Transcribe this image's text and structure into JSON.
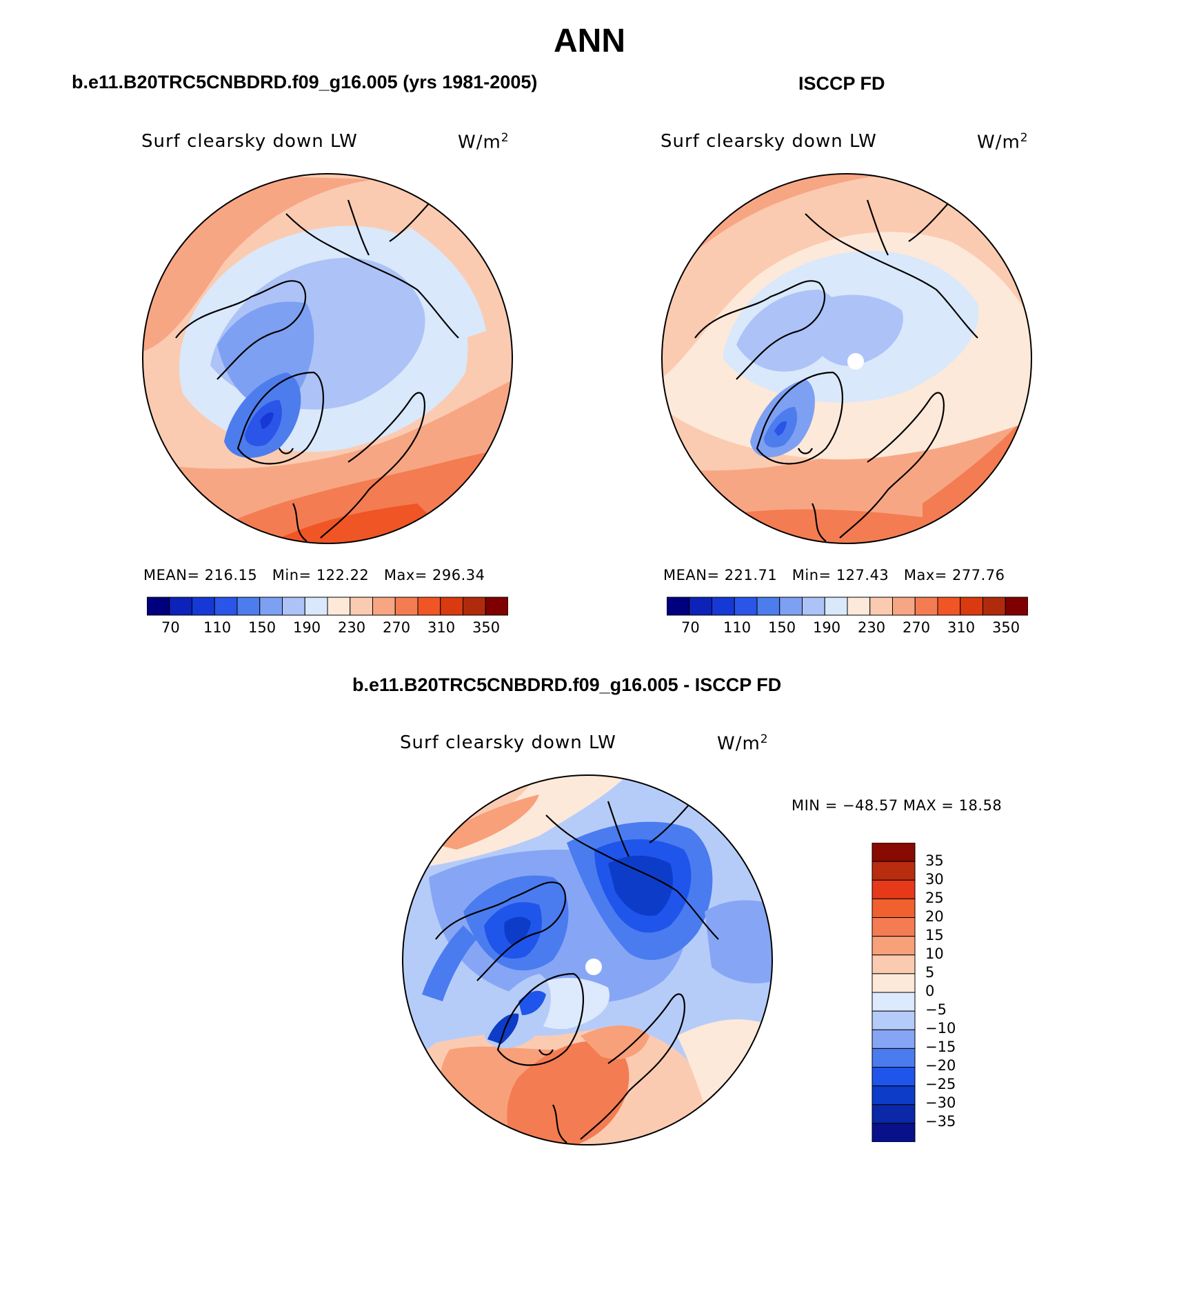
{
  "title": "ANN",
  "colors": {
    "levels14": [
      "#00007f",
      "#0d22b8",
      "#1639d6",
      "#2a55e8",
      "#4d7ded",
      "#7ea0f2",
      "#adc3f7",
      "#d9e8fb",
      "#fde9d9",
      "#fbcbb1",
      "#f7a684",
      "#f47c52",
      "#f05525",
      "#d93a10",
      "#b02a0c",
      "#7f0000"
    ],
    "diff": [
      "#08108a",
      "#0a28a8",
      "#0d3cc8",
      "#1f55ea",
      "#4a7cf0",
      "#86a6f5",
      "#b6ccf8",
      "#dde9fc",
      "#fde9d9",
      "#fbcbb1",
      "#f8a07a",
      "#f47c52",
      "#f0612f",
      "#e5391a",
      "#b82d0f",
      "#880a00"
    ]
  },
  "panels": [
    {
      "header": "b.e11.B20TRC5CNBDRD.f09_g16.005 (yrs 1981-2005)",
      "variable": "Surf clearsky down LW",
      "units": "W/m",
      "units_sup": "2",
      "stats": {
        "mean_label": "MEAN=",
        "mean": "216.15",
        "min_label": "Min=",
        "min": "122.22",
        "max_label": "Max=",
        "max": "296.34"
      },
      "ticks": [
        "70",
        "110",
        "150",
        "190",
        "230",
        "270",
        "310",
        "350"
      ]
    },
    {
      "header": "ISCCP FD",
      "variable": "Surf clearsky down LW",
      "units": "W/m",
      "units_sup": "2",
      "stats": {
        "mean_label": "MEAN=",
        "mean": "221.71",
        "min_label": "Min=",
        "min": "127.43",
        "max_label": "Max=",
        "max": "277.76"
      },
      "ticks": [
        "70",
        "110",
        "150",
        "190",
        "230",
        "270",
        "310",
        "350"
      ]
    }
  ],
  "diff_panel": {
    "header": "b.e11.B20TRC5CNBDRD.f09_g16.005 - ISCCP FD",
    "variable": "Surf clearsky down LW",
    "units": "W/m",
    "units_sup": "2",
    "minmax": "MIN = −48.57 MAX =  18.58",
    "ticks": [
      "35",
      "30",
      "25",
      "20",
      "15",
      "10",
      "5",
      "0",
      "−5",
      "−10",
      "−15",
      "−20",
      "−25",
      "−30",
      "−35"
    ]
  },
  "chart_data": [
    {
      "type": "heatmap",
      "title": "Surf clearsky down LW",
      "units": "W/m2",
      "levels": [
        70,
        90,
        110,
        130,
        150,
        170,
        190,
        210,
        230,
        250,
        270,
        290,
        310,
        330,
        350
      ],
      "mean": 216.15,
      "min": 122.22,
      "max": 296.34
    },
    {
      "type": "heatmap",
      "title": "Surf clearsky down LW",
      "units": "W/m2",
      "levels": [
        70,
        90,
        110,
        130,
        150,
        170,
        190,
        210,
        230,
        250,
        270,
        290,
        310,
        330,
        350
      ],
      "mean": 221.71,
      "min": 127.43,
      "max": 277.76
    },
    {
      "type": "heatmap",
      "title": "Surf clearsky down LW",
      "units": "W/m2",
      "levels": [
        -35,
        -30,
        -25,
        -20,
        -15,
        -10,
        -5,
        0,
        5,
        10,
        15,
        20,
        25,
        30,
        35
      ],
      "min": -48.57,
      "max": 18.58
    }
  ]
}
